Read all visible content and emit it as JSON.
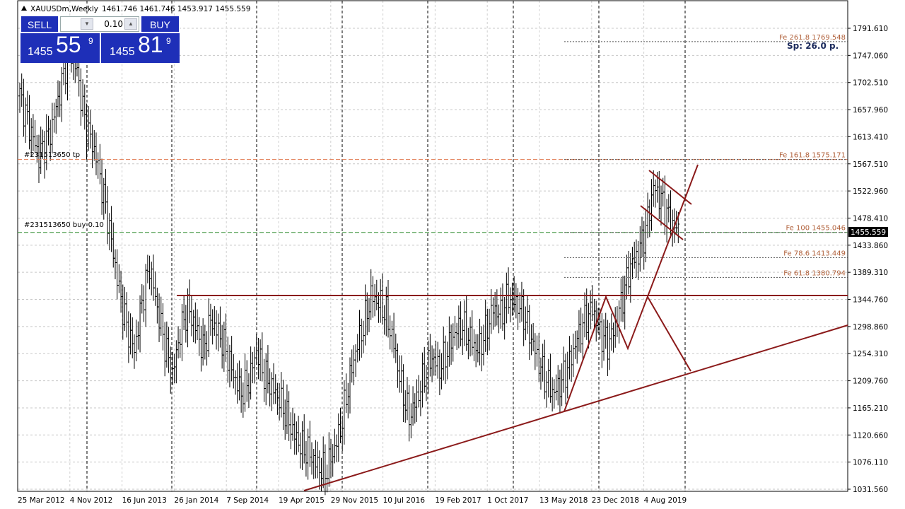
{
  "header": {
    "symbol": "XAUUSDm,Weekly",
    "ohlc": "1461.746 1461.746 1453.917 1455.559"
  },
  "trade_panel": {
    "sell_label": "SELL",
    "buy_label": "BUY",
    "lot_value": "0.10",
    "sell_price_prefix": "1455",
    "sell_price_big": "55",
    "sell_price_sup": "9",
    "buy_price_prefix": "1455",
    "buy_price_big": "81",
    "buy_price_sup": "9",
    "colors": {
      "panel": "#1e2fb8",
      "text": "#ffffff"
    }
  },
  "spread": "Sp: 26.0 p.",
  "current_price": "1455.559",
  "orders": {
    "tp_label": "#231513650 tp",
    "tp_price": 1575.171,
    "buy_label": "#231513650 buy 0.10",
    "buy_price": 1455.046
  },
  "fibonacci": [
    {
      "label": "Fe 261.8   1769.548",
      "price": 1769.548
    },
    {
      "label": "Fe 161.8   1575.171",
      "price": 1575.171
    },
    {
      "label": "Fe 100   1455.046",
      "price": 1455.046
    },
    {
      "label": "Fe 78.6   1413.449",
      "price": 1413.449
    },
    {
      "label": "Fe 61.8   1380.794",
      "price": 1380.794
    }
  ],
  "chart_data": {
    "type": "bar",
    "symbol": "XAUUSDm",
    "timeframe": "Weekly",
    "y_ticks": [
      "1791.610",
      "1747.060",
      "1702.510",
      "1657.960",
      "1613.410",
      "1567.510",
      "1522.960",
      "1478.410",
      "1433.860",
      "1389.310",
      "1344.760",
      "1298.860",
      "1254.310",
      "1209.760",
      "1165.210",
      "1120.660",
      "1076.110",
      "1031.560"
    ],
    "ylim": [
      1031.56,
      1791.61
    ],
    "x_labels": [
      "25 Mar 2012",
      "4 Nov 2012",
      "16 Jun 2013",
      "26 Jan 2014",
      "7 Sep 2014",
      "19 Apr 2015",
      "29 Nov 2015",
      "10 Jul 2016",
      "19 Feb 2017",
      "1 Oct 2017",
      "13 May 2018",
      "23 Dec 2018",
      "4 Aug 2019"
    ],
    "grid": true,
    "price_path": [
      [
        0,
        1680
      ],
      [
        4,
        1640
      ],
      [
        10,
        1580
      ],
      [
        16,
        1620
      ],
      [
        22,
        1700
      ],
      [
        26,
        1760
      ],
      [
        30,
        1720
      ],
      [
        34,
        1640
      ],
      [
        40,
        1580
      ],
      [
        46,
        1480
      ],
      [
        52,
        1360
      ],
      [
        56,
        1300
      ],
      [
        60,
        1260
      ],
      [
        64,
        1340
      ],
      [
        68,
        1400
      ],
      [
        72,
        1330
      ],
      [
        76,
        1270
      ],
      [
        80,
        1220
      ],
      [
        84,
        1290
      ],
      [
        88,
        1330
      ],
      [
        92,
        1300
      ],
      [
        96,
        1260
      ],
      [
        100,
        1310
      ],
      [
        104,
        1290
      ],
      [
        108,
        1260
      ],
      [
        112,
        1220
      ],
      [
        116,
        1190
      ],
      [
        120,
        1210
      ],
      [
        124,
        1260
      ],
      [
        128,
        1220
      ],
      [
        132,
        1200
      ],
      [
        136,
        1180
      ],
      [
        140,
        1150
      ],
      [
        144,
        1120
      ],
      [
        148,
        1100
      ],
      [
        152,
        1090
      ],
      [
        156,
        1070
      ],
      [
        160,
        1060
      ],
      [
        164,
        1090
      ],
      [
        168,
        1130
      ],
      [
        172,
        1200
      ],
      [
        176,
        1260
      ],
      [
        180,
        1300
      ],
      [
        184,
        1350
      ],
      [
        188,
        1340
      ],
      [
        192,
        1320
      ],
      [
        196,
        1270
      ],
      [
        200,
        1200
      ],
      [
        204,
        1150
      ],
      [
        208,
        1180
      ],
      [
        212,
        1220
      ],
      [
        216,
        1250
      ],
      [
        220,
        1230
      ],
      [
        224,
        1260
      ],
      [
        228,
        1290
      ],
      [
        232,
        1300
      ],
      [
        236,
        1280
      ],
      [
        240,
        1260
      ],
      [
        244,
        1290
      ],
      [
        248,
        1330
      ],
      [
        252,
        1320
      ],
      [
        256,
        1350
      ],
      [
        260,
        1340
      ],
      [
        264,
        1320
      ],
      [
        268,
        1280
      ],
      [
        272,
        1240
      ],
      [
        276,
        1210
      ],
      [
        280,
        1190
      ],
      [
        284,
        1210
      ],
      [
        288,
        1240
      ],
      [
        292,
        1280
      ],
      [
        296,
        1310
      ],
      [
        300,
        1330
      ],
      [
        304,
        1290
      ],
      [
        308,
        1270
      ],
      [
        312,
        1300
      ],
      [
        316,
        1350
      ],
      [
        320,
        1400
      ],
      [
        324,
        1420
      ],
      [
        328,
        1460
      ],
      [
        332,
        1530
      ],
      [
        336,
        1510
      ],
      [
        340,
        1480
      ],
      [
        344,
        1460
      ],
      [
        346,
        1456
      ]
    ]
  }
}
